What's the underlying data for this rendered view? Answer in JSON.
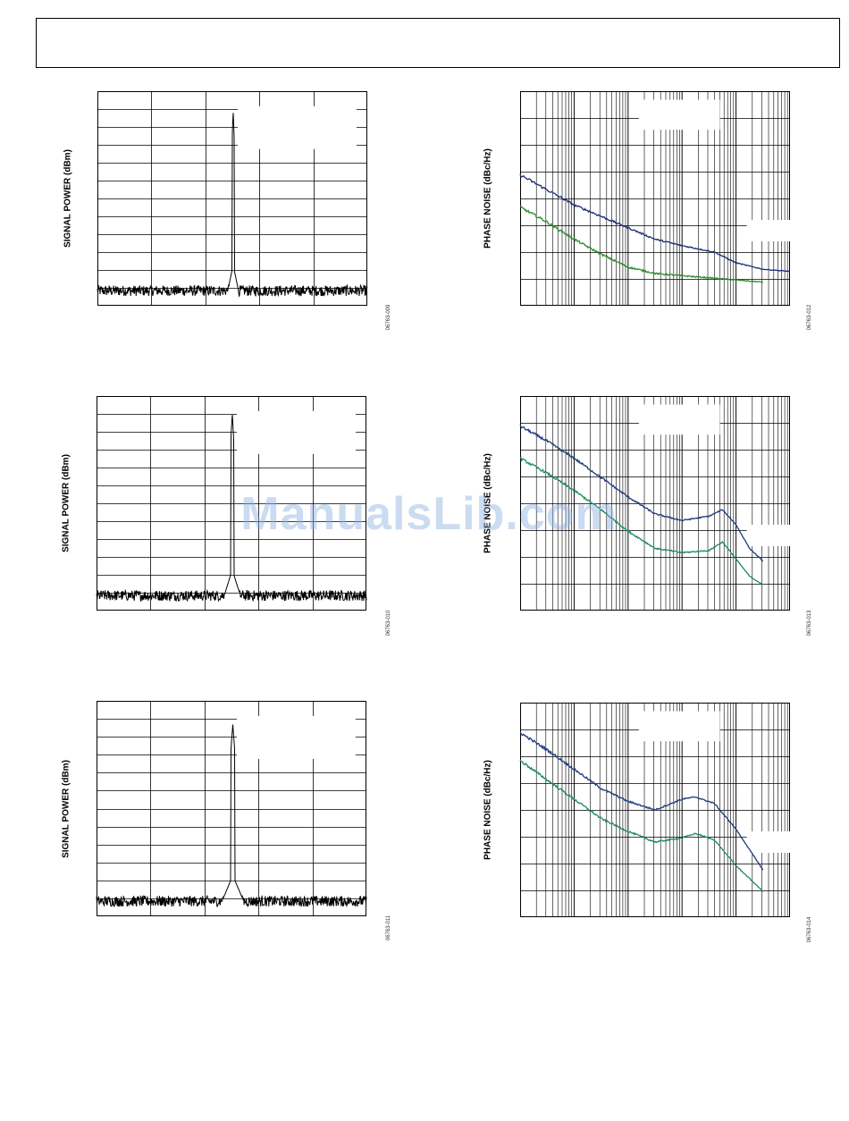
{
  "watermark": "ManualsLib.com",
  "chart_data": [
    {
      "type": "line",
      "id": "spec1",
      "scale": "linear",
      "ylabel": "SIGNAL POWER (dBm)",
      "figure_id": "06763-009",
      "grid": true,
      "x_divisions": 5,
      "y_divisions": 12,
      "peak_at": 0.503,
      "peak_level": 0.91,
      "peak_width": 0.004,
      "noise_floor": 0.07,
      "colors": [
        "#000000"
      ]
    },
    {
      "type": "line",
      "id": "spec2",
      "scale": "linear",
      "ylabel": "SIGNAL POWER (dBm)",
      "figure_id": "06763-010",
      "grid": true,
      "x_divisions": 5,
      "y_divisions": 12,
      "peak_at": 0.503,
      "peak_level": 0.92,
      "peak_width": 0.006,
      "noise_floor": 0.07,
      "colors": [
        "#000000"
      ]
    },
    {
      "type": "line",
      "id": "spec3",
      "scale": "linear",
      "ylabel": "SIGNAL POWER (dBm)",
      "figure_id": "06763-011",
      "grid": true,
      "x_divisions": 5,
      "y_divisions": 12,
      "peak_at": 0.505,
      "peak_level": 0.89,
      "peak_width": 0.008,
      "noise_floor": 0.07,
      "colors": [
        "#000000"
      ]
    },
    {
      "type": "line",
      "id": "pn1",
      "scale": "log-x",
      "ylabel": "PHASE NOISE (dBc/Hz)",
      "figure_id": "06763-012",
      "grid": true,
      "x_decades": 5,
      "y_divisions": 8,
      "series": [
        {
          "color": "#1a2a7a",
          "x": [
            0.0,
            0.1,
            0.2,
            0.35,
            0.5,
            0.6,
            0.72,
            0.8,
            0.9,
            1.0
          ],
          "y": [
            0.61,
            0.54,
            0.47,
            0.39,
            0.31,
            0.28,
            0.25,
            0.2,
            0.17,
            0.16
          ]
        },
        {
          "color": "#2a8a2a",
          "x": [
            0.0,
            0.1,
            0.2,
            0.3,
            0.4,
            0.5,
            0.6,
            0.7,
            0.8,
            0.9
          ],
          "y": [
            0.46,
            0.39,
            0.31,
            0.24,
            0.18,
            0.15,
            0.14,
            0.13,
            0.12,
            0.11
          ]
        }
      ]
    },
    {
      "type": "line",
      "id": "pn2",
      "scale": "log-x",
      "ylabel": "PHASE NOISE (dBc/Hz)",
      "figure_id": "06763-013",
      "grid": true,
      "x_decades": 5,
      "y_divisions": 8,
      "series": [
        {
          "color": "#1a3a7a",
          "x": [
            0.0,
            0.1,
            0.2,
            0.3,
            0.4,
            0.5,
            0.6,
            0.7,
            0.75,
            0.8,
            0.85,
            0.9
          ],
          "y": [
            0.86,
            0.79,
            0.71,
            0.62,
            0.53,
            0.45,
            0.42,
            0.44,
            0.47,
            0.4,
            0.29,
            0.23
          ]
        },
        {
          "color": "#1a8a5a",
          "x": [
            0.0,
            0.1,
            0.2,
            0.3,
            0.4,
            0.5,
            0.6,
            0.7,
            0.75,
            0.8,
            0.85,
            0.9
          ],
          "y": [
            0.71,
            0.64,
            0.56,
            0.47,
            0.37,
            0.29,
            0.27,
            0.28,
            0.32,
            0.24,
            0.16,
            0.12
          ]
        }
      ]
    },
    {
      "type": "line",
      "id": "pn3",
      "scale": "log-x",
      "ylabel": "PHASE NOISE (dBc/Hz)",
      "figure_id": "06763-014",
      "grid": true,
      "x_decades": 5,
      "y_divisions": 8,
      "series": [
        {
          "color": "#1a3a7a",
          "x": [
            0.0,
            0.1,
            0.2,
            0.3,
            0.4,
            0.5,
            0.6,
            0.65,
            0.72,
            0.8,
            0.9
          ],
          "y": [
            0.86,
            0.78,
            0.69,
            0.6,
            0.54,
            0.5,
            0.55,
            0.56,
            0.53,
            0.41,
            0.22
          ]
        },
        {
          "color": "#1a8a5a",
          "x": [
            0.0,
            0.1,
            0.2,
            0.3,
            0.4,
            0.5,
            0.6,
            0.65,
            0.72,
            0.8,
            0.9
          ],
          "y": [
            0.73,
            0.64,
            0.55,
            0.46,
            0.4,
            0.35,
            0.37,
            0.39,
            0.36,
            0.24,
            0.12
          ]
        }
      ]
    }
  ]
}
